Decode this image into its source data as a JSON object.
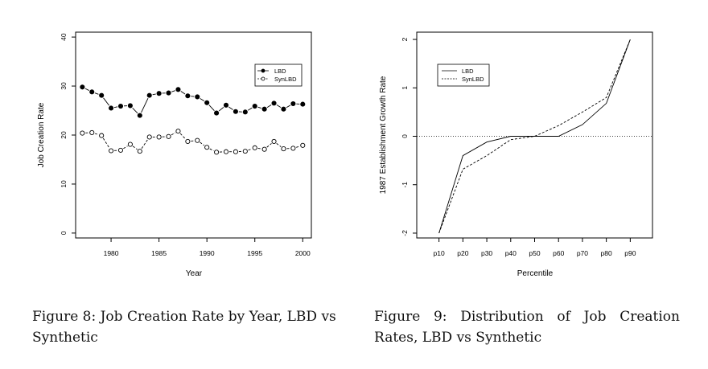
{
  "chart_data": [
    {
      "type": "line",
      "xlabel": "Year",
      "ylabel": "Job Creation Rate",
      "xlim": [
        1976.3,
        2000.9
      ],
      "ylim": [
        -1,
        41
      ],
      "xticks": [
        1980,
        1985,
        1990,
        1995,
        2000
      ],
      "yticks": [
        0,
        10,
        20,
        30,
        40
      ],
      "grid": false,
      "legend_position": "top-right",
      "x": [
        1977,
        1978,
        1979,
        1980,
        1981,
        1982,
        1983,
        1984,
        1985,
        1986,
        1987,
        1988,
        1989,
        1990,
        1991,
        1992,
        1993,
        1994,
        1995,
        1996,
        1997,
        1998,
        1999,
        2000
      ],
      "series": [
        {
          "name": "LBD",
          "line": "solid",
          "marker": "filled",
          "values": [
            29.8,
            28.8,
            28.1,
            25.5,
            25.9,
            26.0,
            24.0,
            28.1,
            28.5,
            28.6,
            29.3,
            28.0,
            27.8,
            26.6,
            24.5,
            26.1,
            24.8,
            24.7,
            25.9,
            25.3,
            26.5,
            25.3,
            26.4,
            26.3
          ]
        },
        {
          "name": "SynLBD",
          "line": "dashed",
          "marker": "open",
          "values": [
            20.4,
            20.5,
            19.9,
            16.8,
            16.9,
            18.1,
            16.7,
            19.6,
            19.6,
            19.7,
            20.8,
            18.7,
            18.9,
            17.5,
            16.5,
            16.6,
            16.6,
            16.7,
            17.4,
            17.1,
            18.7,
            17.2,
            17.3,
            17.9
          ]
        }
      ]
    },
    {
      "type": "line",
      "xlabel": "Percentile",
      "ylabel": "1987 Establishment Growth Rate",
      "categories": [
        "p10",
        "p20",
        "p30",
        "p40",
        "p50",
        "p60",
        "p70",
        "p80",
        "p90"
      ],
      "ylim": [
        -2.1,
        2.15
      ],
      "yticks": [
        -2,
        -1,
        0,
        1,
        2
      ],
      "reference_line": 0,
      "grid": false,
      "legend_position": "top-left",
      "series": [
        {
          "name": "LBD",
          "line": "solid",
          "values": [
            -2.0,
            -0.4,
            -0.12,
            0.0,
            0.0,
            0.0,
            0.24,
            0.68,
            2.0
          ]
        },
        {
          "name": "SynLBD",
          "line": "dashed",
          "values": [
            -2.0,
            -0.68,
            -0.4,
            -0.07,
            0.0,
            0.22,
            0.5,
            0.8,
            2.0
          ]
        }
      ]
    }
  ],
  "captions": {
    "figure8": "Figure 8: Job Creation Rate by Year, LBD vs Synthetic",
    "figure9": "Figure 9: Distribution of Job Creation Rates, LBD vs Synthetic"
  }
}
